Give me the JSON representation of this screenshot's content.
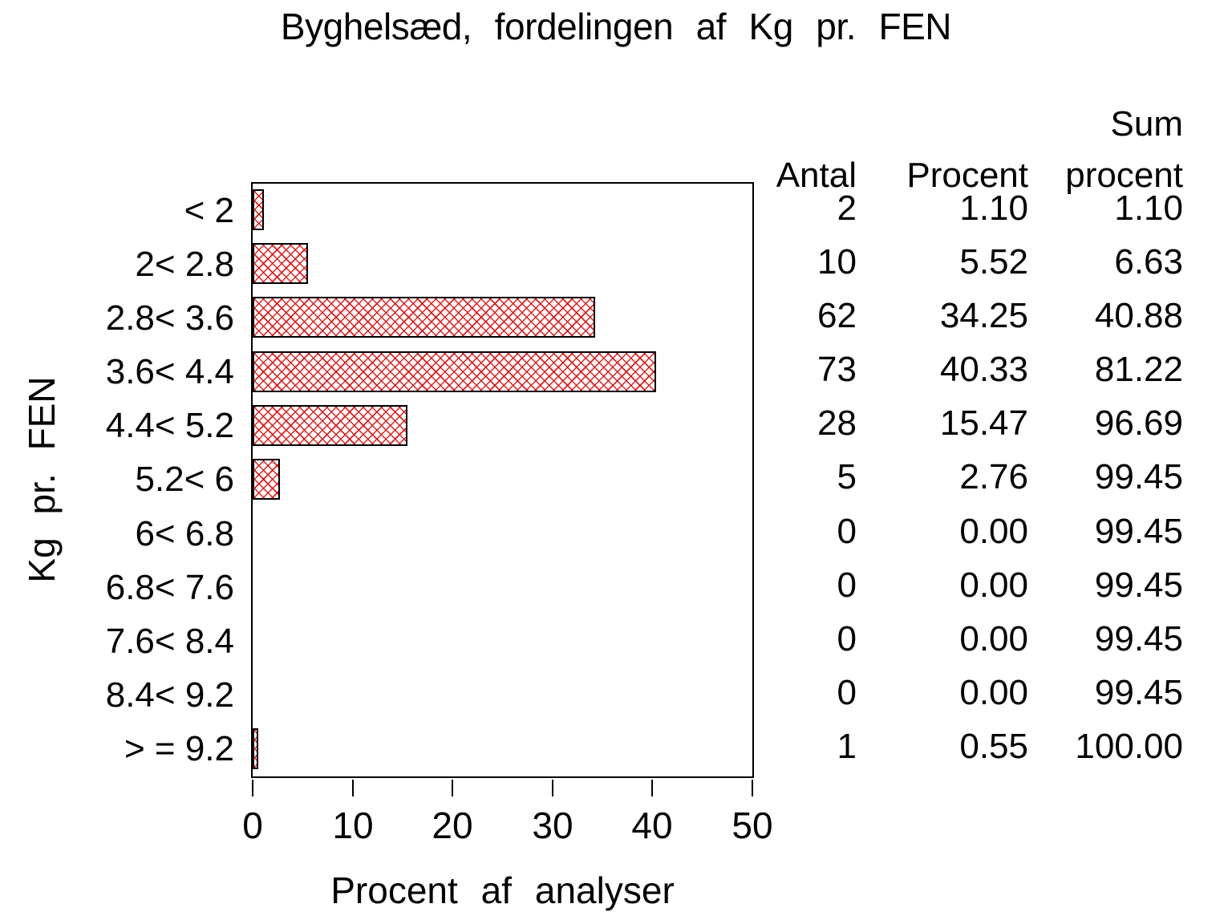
{
  "chart_data": {
    "type": "bar",
    "orientation": "horizontal",
    "title": "Byghelsæd, fordelingen af Kg pr. FEN",
    "ylabel": "Kg pr. FEN",
    "xlabel": "Procent af analyser",
    "categories": [
      "< 2",
      "2< 2.8",
      "2.8< 3.6",
      "3.6< 4.4",
      "4.4< 5.2",
      "5.2< 6",
      "6< 6.8",
      "6.8< 7.6",
      "7.6< 8.4",
      "8.4< 9.2",
      "> = 9.2"
    ],
    "values": [
      1.1,
      5.52,
      34.25,
      40.33,
      15.47,
      2.76,
      0.0,
      0.0,
      0.0,
      0.0,
      0.55
    ],
    "xlim": [
      0,
      50
    ],
    "xticks": [
      0,
      10,
      20,
      30,
      40,
      50
    ],
    "grid": "off",
    "bar_fill_style": "red-crosshatch",
    "bar_hatch_color": "#e01212",
    "bar_border_color": "#000000",
    "background_color": "#ffffff"
  },
  "table": {
    "header": {
      "antal": "Antal",
      "procent": "Procent",
      "sum_line1": "Sum",
      "sum_line2": "procent"
    },
    "rows": [
      {
        "antal": "2",
        "procent": "1.10",
        "sum": "1.10"
      },
      {
        "antal": "10",
        "procent": "5.52",
        "sum": "6.63"
      },
      {
        "antal": "62",
        "procent": "34.25",
        "sum": "40.88"
      },
      {
        "antal": "73",
        "procent": "40.33",
        "sum": "81.22"
      },
      {
        "antal": "28",
        "procent": "15.47",
        "sum": "96.69"
      },
      {
        "antal": "5",
        "procent": "2.76",
        "sum": "99.45"
      },
      {
        "antal": "0",
        "procent": "0.00",
        "sum": "99.45"
      },
      {
        "antal": "0",
        "procent": "0.00",
        "sum": "99.45"
      },
      {
        "antal": "0",
        "procent": "0.00",
        "sum": "99.45"
      },
      {
        "antal": "0",
        "procent": "0.00",
        "sum": "99.45"
      },
      {
        "antal": "1",
        "procent": "0.55",
        "sum": "100.00"
      }
    ]
  }
}
